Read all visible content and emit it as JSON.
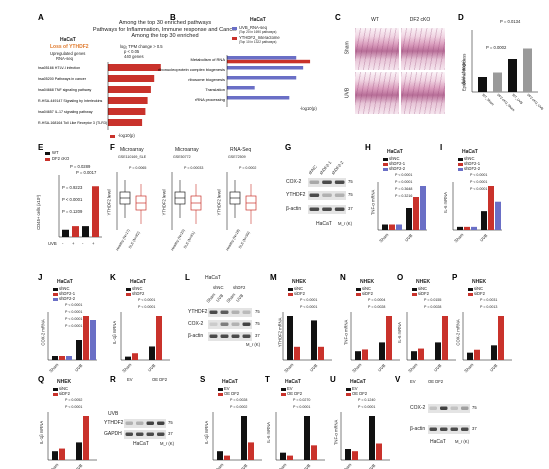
{
  "panel_letters": [
    "A",
    "B",
    "C",
    "D",
    "E",
    "F",
    "G",
    "H",
    "I",
    "J",
    "K",
    "L",
    "M",
    "N",
    "O",
    "P",
    "Q",
    "R",
    "S",
    "T",
    "U",
    "V"
  ],
  "colors": {
    "red": "#c9322b",
    "blue": "#6a6fc6",
    "black": "#111111",
    "light_red": "#e88a7d",
    "gray": "#9a9a9a",
    "blot": "#3a3a3a"
  },
  "header": {
    "line1": "Among the top 30 enriched pathways",
    "line2": "Pathways for Inflammation, Immune response and Cancer",
    "line3": "Among the top 30 enriched"
  },
  "panel_a": {
    "cell_line": "HaCaT",
    "condition": "Loss of YTHDF2",
    "sub1": "Upregulated genes",
    "sub2": "RNA-seq",
    "filter1": "log₂ TPM change > 0.5",
    "filter2": "p < 0.05",
    "filter3": "440 genes",
    "xlabel": "-log10(p)",
    "pathways": [
      "hsa05166 HTLV-I infection",
      "hsa05200 Pathways in cancer",
      "hsa04668 TNF signaling pathway",
      "R-HSA-449147 Signaling by Interleukins",
      "hsa04657 IL-17 signaling pathway",
      "R-HSA-168164 Toll Like Receptor 3 (TLR3) Cascade"
    ],
    "values": [
      4.8,
      4.2,
      3.9,
      3.6,
      3.4,
      3.1
    ]
  },
  "panel_b": {
    "cell_line": "HaCaT",
    "legend1": "UVB_RNA-seq",
    "legend1_sub": "(Top 20 in 1690 pathways)",
    "legend2": "YTHDF2_Interactome",
    "legend2_sub": "(Top 10 in 1322 pathways)",
    "xlabel": "-log10(p)",
    "pathways": [
      "Metabolism of RNA",
      "ribonucleoprotein complex biogenesis",
      "ribosome biogenesis",
      "Translation",
      "rRNA processing"
    ],
    "rnaseq": [
      10,
      11,
      10,
      4,
      9
    ],
    "interactome": [
      12,
      0,
      0,
      0,
      0
    ]
  },
  "panel_c": {
    "col1": "WT",
    "col2": "DF2 cKO",
    "row1": "Sham",
    "row2": "UVB"
  },
  "panel_d": {
    "ylabel": "Epidermal thickness",
    "ylabel2": "(fold change)",
    "p1": "P = 0.0134",
    "p2": "P = 0.0002",
    "categories": [
      "WT_Sham",
      "DF2 cKO_Sham",
      "WT_UVB",
      "DF2 cKO_UVB"
    ],
    "values": [
      1,
      1.3,
      2.2,
      2.9
    ],
    "ylim": [
      0,
      4
    ]
  },
  "panel_e": {
    "legend1": "WT",
    "legend2": "DF2 cKO",
    "ylabel": "CD45+ cells (x10³)",
    "xlabel": "UVB",
    "ticks": [
      "-",
      "+",
      "-",
      "+"
    ],
    "pvals": [
      "P = 0.0289",
      "P = 0.0017",
      "P = 0.9223",
      "P < 0.0001",
      "P = 0.1209"
    ],
    "values": [
      2,
      3,
      3,
      14
    ]
  },
  "panel_f": {
    "titles": [
      "Microarray",
      "Microarray",
      "RNA-Seq"
    ],
    "gse": [
      "GSE110169_SLE",
      "GSE50772",
      "GSE72509"
    ],
    "ylabel": "YTHDF2 level",
    "pvals": [
      "P = 0.0065",
      "P = 0.00033",
      "P = 0.0002"
    ],
    "x1": [
      "Healthy (N=17)",
      "Healthy (N=20)",
      "Healthy (N=18)"
    ],
    "x2": [
      "SLE (N=82)",
      "SLE (N=61)",
      "SLE (N=99)"
    ]
  },
  "panel_g": {
    "lanes": [
      "shNC",
      "shDF2-1",
      "shDF2-2"
    ],
    "bands": [
      "COX-2",
      "YTHDF2",
      "β-actin"
    ],
    "cell": "HaCaT",
    "mw": "M_r (K)",
    "mw_vals": [
      "75",
      "75",
      "37"
    ]
  },
  "panel_h": {
    "cell": "HaCaT",
    "legend": [
      "shNC",
      "shDF2-1",
      "shDF2-2"
    ],
    "ylabel": "TNF-α mRNA",
    "x": [
      "Sham",
      "UVB"
    ],
    "pvals": [
      "P < 0.0001",
      "P = 0.0001",
      "P = 0.3648",
      "P = 0.3216"
    ]
  },
  "panel_i": {
    "cell": "HaCaT",
    "legend": [
      "shNC",
      "shDF2-1",
      "shDF2-2"
    ],
    "ylabel": "IL-6 mRNA",
    "x": [
      "Sham",
      "UVB"
    ],
    "pvals": [
      "P < 0.0001",
      "P < 0.0001",
      "P < 0.0001"
    ]
  },
  "panel_j": {
    "cell": "HaCaT",
    "legend": [
      "shNC",
      "shDF2-1",
      "shDF2-2"
    ],
    "ylabel": "COX-2 mRNA",
    "x": [
      "Sham",
      "UVB"
    ],
    "pvals": [
      "P < 0.0001",
      "P < 0.0001",
      "P < 0.0001",
      "P = 0.0001"
    ]
  },
  "panel_k": {
    "cell": "HaCaT",
    "legend": [
      "shNC",
      "shDF2"
    ],
    "ylabel": "IL-1β mRNA",
    "x": [
      "Sham",
      "UVB"
    ],
    "pvals": [
      "P < 0.0001",
      "P < 0.0001"
    ]
  },
  "panel_l": {
    "cell": "HaCaT",
    "groups": [
      "shNC",
      "shDF2"
    ],
    "lanes": [
      "Sham",
      "UVB",
      "Sham",
      "UVB"
    ],
    "bands": [
      "YTHDF2",
      "COX-2",
      "β-actin"
    ],
    "mw_vals": [
      "75",
      "75",
      "37"
    ],
    "mw": "M_r (K)"
  },
  "panel_m": {
    "cell": "NHEK",
    "legend": [
      "siNC",
      "siDF2"
    ],
    "ylabel": "YTHDF2 mRNA",
    "x": [
      "Sham",
      "UVB"
    ],
    "pvals": [
      "P < 0.0001",
      "P < 0.0001"
    ]
  },
  "panel_n": {
    "cell": "NHEK",
    "legend": [
      "siNC",
      "siDF2"
    ],
    "ylabel": "TNF-α mRNA",
    "x": [
      "Sham",
      "UVB"
    ],
    "pvals": [
      "P = 0.0004",
      "P = 0.0028"
    ]
  },
  "panel_o": {
    "cell": "NHEK",
    "legend": [
      "siNC",
      "siDF2"
    ],
    "ylabel": "IL-6 mRNA",
    "x": [
      "Sham",
      "UVB"
    ],
    "pvals": [
      "P = 0.0155",
      "P = 0.0028"
    ]
  },
  "panel_p": {
    "cell": "NHEK",
    "legend": [
      "siNC",
      "siDF2"
    ],
    "ylabel": "COX-2 mRNA",
    "x": [
      "Sham",
      "UVB"
    ],
    "pvals": [
      "P = 0.0031",
      "P = 0.0013"
    ]
  },
  "panel_q": {
    "cell": "NHEK",
    "legend": [
      "siNC",
      "siDF2"
    ],
    "ylabel": "IL-1β mRNA",
    "x": [
      "Sham",
      "UVB"
    ],
    "pvals": [
      "P = 0.0052",
      "P < 0.0001"
    ]
  },
  "panel_r": {
    "groups": [
      "EV",
      "OE DF2"
    ],
    "lanes": [
      "Sham",
      "UVB",
      "Sham",
      "UVB"
    ],
    "row_label": "UVB",
    "bands": [
      "YTHDF2",
      "GAPDH"
    ],
    "cell": "HaCaT",
    "mw": "M_r (K)",
    "mw_vals": [
      "75",
      "37"
    ]
  },
  "panel_s": {
    "cell": "HaCaT",
    "legend": [
      "EV",
      "OE DF2"
    ],
    "ylabel": "IL-1β mRNA",
    "x": [
      "Sham",
      "UVB"
    ],
    "pvals": [
      "P = 0.0028",
      "P = 0.0002"
    ]
  },
  "panel_t": {
    "cell": "HaCaT",
    "legend": [
      "EV",
      "OE DF2"
    ],
    "ylabel": "IL-6 mRNA",
    "x": [
      "Sham",
      "UVB"
    ],
    "pvals": [
      "P = 0.0270",
      "P < 0.0001"
    ]
  },
  "panel_u": {
    "cell": "HaCaT",
    "legend": [
      "EV",
      "OE DF2"
    ],
    "ylabel": "TNF-α mRNA",
    "x": [
      "Sham",
      "UVB"
    ],
    "pvals": [
      "P = 0.1240",
      "P < 0.0001"
    ]
  },
  "panel_v": {
    "groups": [
      "EV",
      "OE DF2"
    ],
    "lanes": [
      "Sham",
      "UVB",
      "Sham",
      "UVB"
    ],
    "bands": [
      "COX-2",
      "β-actin"
    ],
    "cell": "HaCaT",
    "mw": "M_r (K)",
    "mw_vals": [
      "75",
      "37"
    ]
  },
  "chart_data": [
    {
      "panel": "A",
      "type": "bar",
      "categories": [
        "hsa05166 HTLV-I infection",
        "hsa05200 Pathways in cancer",
        "hsa04668 TNF signaling pathway",
        "R-HSA-449147 Signaling by Interleukins",
        "hsa04657 IL-17 signaling pathway",
        "R-HSA-168164 Toll Like Receptor 3 (TLR3) Cascade"
      ],
      "values": [
        4.8,
        4.2,
        3.9,
        3.6,
        3.4,
        3.1
      ],
      "xlabel": "-log10(p)",
      "orientation": "horizontal"
    },
    {
      "panel": "B",
      "type": "bar",
      "categories": [
        "Metabolism of RNA",
        "ribonucleoprotein complex biogenesis",
        "ribosome biogenesis",
        "Translation",
        "rRNA processing"
      ],
      "series": [
        {
          "name": "UVB_RNA-seq",
          "values": [
            10,
            11,
            10,
            4,
            9
          ]
        },
        {
          "name": "YTHDF2_Interactome",
          "values": [
            12,
            0,
            0,
            0,
            0
          ]
        }
      ],
      "xlabel": "-log10(p)",
      "orientation": "horizontal"
    },
    {
      "panel": "D",
      "type": "bar",
      "categories": [
        "WT Sham",
        "DF2 cKO Sham",
        "WT UVB",
        "DF2 cKO UVB"
      ],
      "values": [
        1,
        1.3,
        2.2,
        2.9
      ],
      "ylabel": "Epidermal thickness (fold change)",
      "ylim": [
        0,
        4
      ]
    },
    {
      "panel": "E",
      "type": "bar",
      "categories": [
        "WT -",
        "DF2 cKO -",
        "WT +",
        "DF2 cKO +"
      ],
      "values": [
        2,
        3,
        3,
        14
      ],
      "ylabel": "CD45+ cells (x10³)"
    },
    {
      "panel": "H",
      "type": "bar",
      "categories": [
        "Sham",
        "UVB"
      ],
      "series": [
        {
          "name": "shNC",
          "values": [
            1,
            4
          ]
        },
        {
          "name": "shDF2-1",
          "values": [
            1,
            6
          ]
        },
        {
          "name": "shDF2-2",
          "values": [
            1,
            8
          ]
        }
      ],
      "ylabel": "TNF-α mRNA"
    },
    {
      "panel": "I",
      "type": "bar",
      "categories": [
        "Sham",
        "UVB"
      ],
      "series": [
        {
          "name": "shNC",
          "values": [
            1,
            6
          ]
        },
        {
          "name": "shDF2-1",
          "values": [
            1,
            14
          ]
        },
        {
          "name": "shDF2-2",
          "values": [
            1,
            9
          ]
        }
      ],
      "ylabel": "IL-6 mRNA"
    },
    {
      "panel": "J",
      "type": "bar",
      "categories": [
        "Sham",
        "UVB"
      ],
      "series": [
        {
          "name": "shNC",
          "values": [
            1,
            5
          ]
        },
        {
          "name": "shDF2-1",
          "values": [
            1,
            11
          ]
        },
        {
          "name": "shDF2-2",
          "values": [
            1,
            10
          ]
        }
      ],
      "ylabel": "COX-2 mRNA"
    },
    {
      "panel": "K",
      "type": "bar",
      "categories": [
        "Sham",
        "UVB"
      ],
      "series": [
        {
          "name": "shNC",
          "values": [
            1,
            4
          ]
        },
        {
          "name": "shDF2",
          "values": [
            2,
            13
          ]
        }
      ],
      "ylabel": "IL-1β mRNA"
    },
    {
      "panel": "M",
      "type": "bar",
      "categories": [
        "Sham",
        "UVB"
      ],
      "series": [
        {
          "name": "siNC",
          "values": [
            1,
            0.9
          ]
        },
        {
          "name": "siDF2",
          "values": [
            0.3,
            0.3
          ]
        }
      ],
      "ylabel": "YTHDF2 mRNA"
    },
    {
      "panel": "N",
      "type": "bar",
      "categories": [
        "Sham",
        "UVB"
      ],
      "series": [
        {
          "name": "siNC",
          "values": [
            1,
            2
          ]
        },
        {
          "name": "siDF2",
          "values": [
            1.2,
            5
          ]
        }
      ],
      "ylabel": "TNF-α mRNA"
    },
    {
      "panel": "O",
      "type": "bar",
      "categories": [
        "Sham",
        "UVB"
      ],
      "series": [
        {
          "name": "siNC",
          "values": [
            1,
            2
          ]
        },
        {
          "name": "siDF2",
          "values": [
            1.3,
            5
          ]
        }
      ],
      "ylabel": "IL-6 mRNA"
    },
    {
      "panel": "P",
      "type": "bar",
      "categories": [
        "Sham",
        "UVB"
      ],
      "series": [
        {
          "name": "siNC",
          "values": [
            1,
            2
          ]
        },
        {
          "name": "siDF2",
          "values": [
            1.4,
            6
          ]
        }
      ],
      "ylabel": "COX-2 mRNA"
    },
    {
      "panel": "Q",
      "type": "bar",
      "categories": [
        "Sham",
        "UVB"
      ],
      "series": [
        {
          "name": "siNC",
          "values": [
            1,
            2
          ]
        },
        {
          "name": "siDF2",
          "values": [
            1.3,
            5
          ]
        }
      ],
      "ylabel": "IL-1β mRNA"
    },
    {
      "panel": "S",
      "type": "bar",
      "categories": [
        "Sham",
        "UVB"
      ],
      "series": [
        {
          "name": "EV",
          "values": [
            1,
            5
          ]
        },
        {
          "name": "OE DF2",
          "values": [
            0.5,
            2
          ]
        }
      ],
      "ylabel": "IL-1β mRNA"
    },
    {
      "panel": "T",
      "type": "bar",
      "categories": [
        "Sham",
        "UVB"
      ],
      "series": [
        {
          "name": "EV",
          "values": [
            1,
            6
          ]
        },
        {
          "name": "OE DF2",
          "values": [
            0.6,
            2
          ]
        }
      ],
      "ylabel": "IL-6 mRNA"
    },
    {
      "panel": "U",
      "type": "bar",
      "categories": [
        "Sham",
        "UVB"
      ],
      "series": [
        {
          "name": "EV",
          "values": [
            1,
            4
          ]
        },
        {
          "name": "OE DF2",
          "values": [
            0.8,
            1.5
          ]
        }
      ],
      "ylabel": "TNF-α mRNA"
    }
  ]
}
